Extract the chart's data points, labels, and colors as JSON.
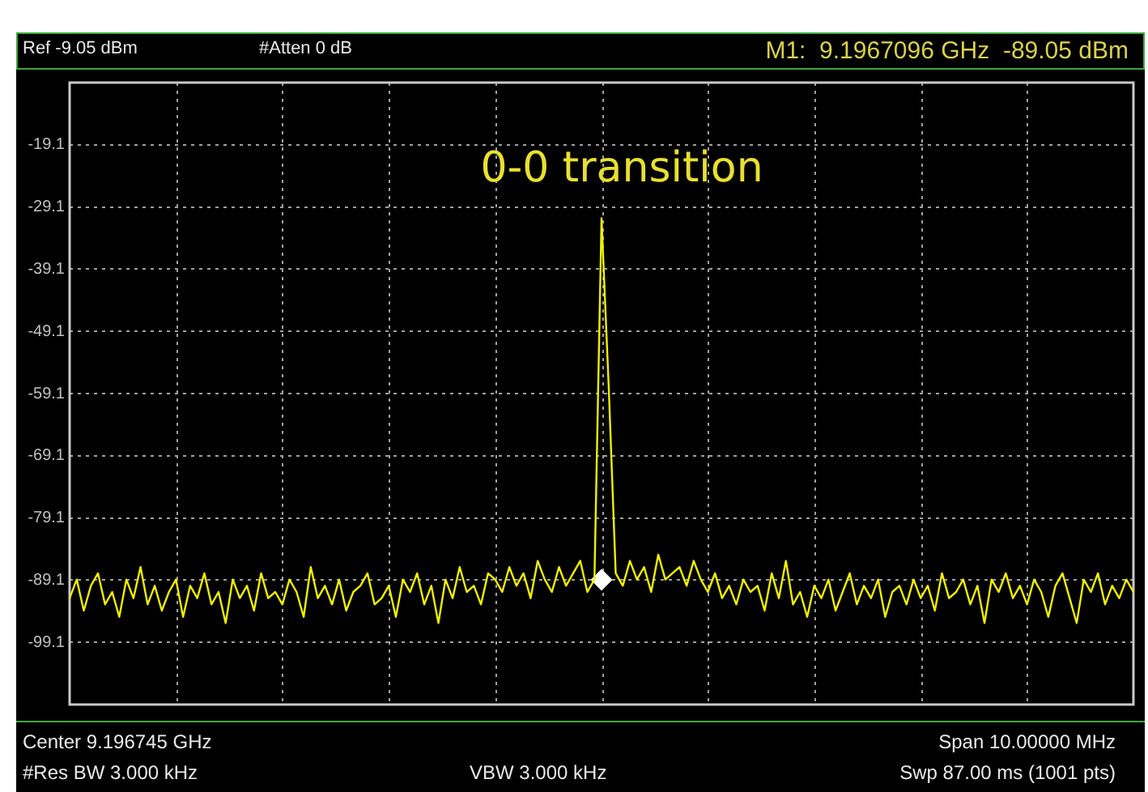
{
  "chart_data": {
    "type": "line",
    "annotations": [
      "Ref -9.05 dBm",
      "#Atten 0 dB",
      "M1:  9.1967096 GHz  -89.05 dBm",
      "0-0 transition",
      "Center 9.196745 GHz",
      "Span 10.00000 MHz",
      "#Res BW 3.000 kHz",
      "VBW 3.000 kHz",
      "Swp 87.00 ms (1001 pts)"
    ],
    "categories": [
      null,
      null,
      null,
      null,
      null,
      null,
      null,
      null,
      null,
      null,
      null,
      null,
      null,
      null,
      null,
      null,
      null,
      null,
      null,
      null,
      null,
      null,
      null,
      null,
      null,
      null,
      null,
      null,
      null,
      null,
      null,
      null,
      null,
      null,
      null,
      null,
      null,
      null,
      null,
      null,
      null,
      null,
      null,
      null,
      null,
      null,
      null,
      null,
      null,
      null,
      null,
      null,
      null,
      null,
      null,
      null,
      null,
      null,
      null,
      null,
      null,
      null,
      null,
      null,
      null,
      null,
      null,
      null,
      null,
      null,
      null,
      null,
      null,
      null,
      null,
      null,
      null,
      null,
      null,
      null,
      null,
      null,
      null,
      null,
      null,
      null,
      null,
      null,
      null,
      null,
      null,
      null,
      null,
      null,
      null,
      null,
      null,
      null,
      null,
      null,
      null,
      null,
      null,
      null,
      null,
      null,
      null,
      null,
      null,
      null,
      null,
      null,
      null,
      null,
      null,
      null,
      null,
      null,
      null,
      null,
      null,
      null,
      null,
      null,
      null,
      null,
      null,
      null,
      null,
      null,
      null,
      null,
      null,
      null,
      null,
      null,
      null,
      null,
      null,
      null,
      null,
      null,
      null,
      null,
      null,
      null,
      null,
      null,
      null,
      null,
      null
    ],
    "series": [
      {
        "type": "line",
        "color": "#f0f000",
        "values": [
          -92,
          -89,
          -94,
          -90,
          -88,
          -93,
          -91,
          -95,
          -89,
          -92,
          -87,
          -93,
          -90,
          -94,
          -91,
          -89,
          -95,
          -90,
          -92,
          -88,
          -93,
          -91,
          -96,
          -89,
          -92,
          -90,
          -94,
          -88,
          -92,
          -91,
          -93,
          -89,
          -91,
          -95,
          -87,
          -92,
          -90,
          -93,
          -89,
          -94,
          -91,
          -90,
          -88,
          -93,
          -92,
          -90,
          -95,
          -89,
          -91,
          -88,
          -93,
          -90,
          -96,
          -89,
          -92,
          -87,
          -91,
          -90,
          -93,
          -88,
          -89,
          -91,
          -87,
          -90,
          -88,
          -92,
          -86,
          -89,
          -91,
          -87,
          -90,
          -88,
          -86,
          -91,
          -89,
          -30.9,
          -57.6,
          -88,
          -90,
          -86,
          -89,
          -87,
          -91,
          -85,
          -89,
          -88,
          -87,
          -90,
          -86,
          -89,
          -91,
          -88,
          -92,
          -90,
          -93,
          -89,
          -91,
          -90,
          -94,
          -88,
          -92,
          -86,
          -93,
          -91,
          -95,
          -90,
          -92,
          -89,
          -94,
          -91,
          -88,
          -93,
          -90,
          -92,
          -89,
          -95,
          -91,
          -90,
          -93,
          -89,
          -92,
          -90,
          -94,
          -88,
          -92,
          -91,
          -89,
          -93,
          -90,
          -96,
          -89,
          -91,
          -88,
          -92,
          -90,
          -93,
          -89,
          -91,
          -95,
          -90,
          -88,
          -92,
          -96,
          -89,
          -91,
          -88,
          -93,
          -90,
          -92,
          -89,
          -91
        ]
      },
      {
        "type": "scatter",
        "color": "#ffffff",
        "marker": "diamond",
        "values": [
          null,
          null,
          null,
          null,
          null,
          null,
          null,
          null,
          null,
          null,
          null,
          null,
          null,
          null,
          null,
          null,
          null,
          null,
          null,
          null,
          null,
          null,
          null,
          null,
          null,
          null,
          null,
          null,
          null,
          null,
          null,
          null,
          null,
          null,
          null,
          null,
          null,
          null,
          null,
          null,
          null,
          null,
          null,
          null,
          null,
          null,
          null,
          null,
          null,
          null,
          null,
          null,
          null,
          null,
          null,
          null,
          null,
          null,
          null,
          null,
          null,
          null,
          null,
          null,
          null,
          null,
          null,
          null,
          null,
          null,
          null,
          null,
          null,
          null,
          null,
          -89.05,
          null,
          null,
          null,
          null,
          null,
          null,
          null,
          null,
          null,
          null,
          null,
          null,
          null,
          null,
          null,
          null,
          null,
          null,
          null,
          null,
          null,
          null,
          null,
          null,
          null,
          null,
          null,
          null,
          null,
          null,
          null,
          null,
          null,
          null,
          null,
          null,
          null,
          null,
          null,
          null,
          null,
          null,
          null,
          null,
          null,
          null,
          null,
          null,
          null,
          null,
          null,
          null,
          null,
          null,
          null,
          null,
          null,
          null,
          null,
          null,
          null,
          null,
          null,
          null,
          null,
          null,
          null,
          null,
          null,
          null,
          null,
          null,
          null,
          null,
          null
        ]
      }
    ],
    "ylim": [
      -109.1,
      -9.1
    ],
    "yticks": [
      -19.1,
      -29.1,
      -39.1,
      -49.1,
      -59.1,
      -69.1,
      -79.1,
      -89.1,
      -99.1
    ],
    "grid": true,
    "tick_labels": "y"
  }
}
